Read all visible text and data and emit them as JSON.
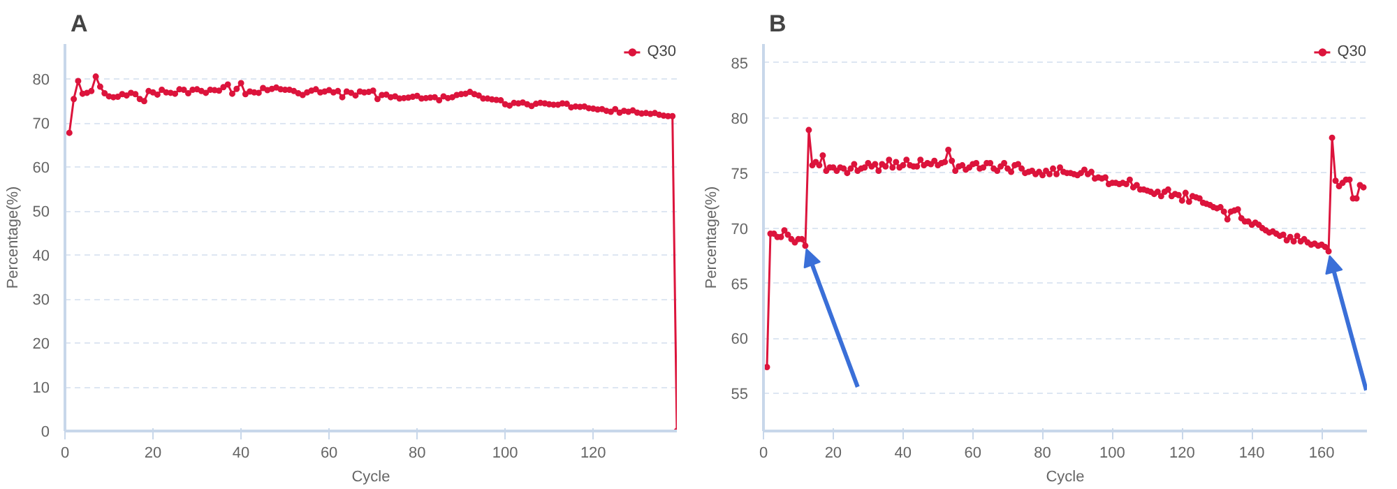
{
  "chart_data": [
    {
      "type": "line",
      "title": "A",
      "xlabel": "Cycle",
      "ylabel": "Percentage(%)",
      "xlim": [
        0,
        139
      ],
      "xticks": [
        0,
        20,
        40,
        60,
        80,
        100,
        120
      ],
      "ylim": [
        0,
        88
      ],
      "yticks": [
        0,
        10,
        20,
        30,
        40,
        50,
        60,
        70,
        80
      ],
      "grid": "y",
      "legend": "top right",
      "marker": "circle",
      "line_style": "solid",
      "series": [
        {
          "name": "Q30",
          "color": "#dc143c",
          "x": [
            1,
            2,
            3,
            4,
            5,
            6,
            7,
            8,
            9,
            10,
            11,
            12,
            13,
            14,
            15,
            16,
            17,
            18,
            19,
            20,
            21,
            22,
            23,
            24,
            25,
            26,
            27,
            28,
            29,
            30,
            31,
            32,
            33,
            34,
            35,
            36,
            37,
            38,
            39,
            40,
            41,
            42,
            43,
            44,
            45,
            46,
            47,
            48,
            49,
            50,
            51,
            52,
            53,
            54,
            55,
            56,
            57,
            58,
            59,
            60,
            61,
            62,
            63,
            64,
            65,
            66,
            67,
            68,
            69,
            70,
            71,
            72,
            73,
            74,
            75,
            76,
            77,
            78,
            79,
            80,
            81,
            82,
            83,
            84,
            85,
            86,
            87,
            88,
            89,
            90,
            91,
            92,
            93,
            94,
            95,
            96,
            97,
            98,
            99,
            100,
            101,
            102,
            103,
            104,
            105,
            106,
            107,
            108,
            109,
            110,
            111,
            112,
            113,
            114,
            115,
            116,
            117,
            118,
            119,
            120,
            121,
            122,
            123,
            124,
            125,
            126,
            127,
            128,
            129,
            130,
            131,
            132,
            133,
            134,
            135,
            136,
            137,
            138,
            139
          ],
          "values": [
            67.8,
            75.5,
            79.6,
            76.7,
            76.9,
            77.3,
            80.6,
            78.3,
            76.8,
            76.1,
            75.9,
            76.0,
            76.6,
            76.3,
            76.9,
            76.6,
            75.5,
            75.0,
            77.3,
            77.0,
            76.5,
            77.6,
            77.0,
            76.9,
            76.7,
            77.7,
            77.6,
            76.8,
            77.6,
            77.7,
            77.3,
            76.9,
            77.6,
            77.5,
            77.4,
            78.2,
            78.8,
            76.7,
            77.8,
            79.1,
            76.6,
            77.2,
            77.0,
            76.9,
            78.0,
            77.5,
            77.8,
            78.1,
            77.7,
            77.6,
            77.6,
            77.3,
            76.8,
            76.4,
            77.0,
            77.4,
            77.7,
            77.0,
            77.2,
            77.5,
            77.0,
            77.3,
            75.9,
            77.2,
            76.9,
            76.3,
            77.2,
            77.0,
            77.1,
            77.4,
            75.5,
            76.4,
            76.5,
            75.9,
            76.1,
            75.6,
            75.7,
            75.8,
            76.0,
            76.2,
            75.6,
            75.7,
            75.8,
            75.9,
            75.2,
            76.1,
            75.7,
            75.9,
            76.4,
            76.6,
            76.7,
            77.1,
            76.6,
            76.3,
            75.6,
            75.6,
            75.4,
            75.3,
            75.2,
            74.3,
            74.0,
            74.6,
            74.5,
            74.7,
            74.3,
            73.9,
            74.4,
            74.6,
            74.5,
            74.3,
            74.2,
            74.2,
            74.5,
            74.4,
            73.6,
            73.8,
            73.7,
            73.8,
            73.4,
            73.3,
            73.1,
            73.2,
            72.8,
            72.6,
            73.2,
            72.4,
            72.8,
            72.6,
            72.9,
            72.4,
            72.2,
            72.3,
            72.1,
            72.3,
            71.9,
            71.7,
            71.6,
            71.6,
            0
          ]
        }
      ]
    },
    {
      "type": "line",
      "title": "B",
      "xlabel": "Cycle",
      "ylabel": "Percentage(%)",
      "xlim": [
        0,
        173
      ],
      "xticks": [
        0,
        20,
        40,
        60,
        80,
        100,
        120,
        140,
        160
      ],
      "ylim": [
        51.6,
        86.7
      ],
      "yticks": [
        55,
        60,
        65,
        70,
        75,
        80,
        85
      ],
      "grid": "y",
      "legend": "top right",
      "marker": "circle",
      "line_style": "solid",
      "series": [
        {
          "name": "Q30",
          "color": "#dc143c",
          "x": [
            1,
            2,
            3,
            4,
            5,
            6,
            7,
            8,
            9,
            10,
            11,
            12,
            13,
            14,
            15,
            16,
            17,
            18,
            19,
            20,
            21,
            22,
            23,
            24,
            25,
            26,
            27,
            28,
            29,
            30,
            31,
            32,
            33,
            34,
            35,
            36,
            37,
            38,
            39,
            40,
            41,
            42,
            43,
            44,
            45,
            46,
            47,
            48,
            49,
            50,
            51,
            52,
            53,
            54,
            55,
            56,
            57,
            58,
            59,
            60,
            61,
            62,
            63,
            64,
            65,
            66,
            67,
            68,
            69,
            70,
            71,
            72,
            73,
            74,
            75,
            76,
            77,
            78,
            79,
            80,
            81,
            82,
            83,
            84,
            85,
            86,
            87,
            88,
            89,
            90,
            91,
            92,
            93,
            94,
            95,
            96,
            97,
            98,
            99,
            100,
            101,
            102,
            103,
            104,
            105,
            106,
            107,
            108,
            109,
            110,
            111,
            112,
            113,
            114,
            115,
            116,
            117,
            118,
            119,
            120,
            121,
            122,
            123,
            124,
            125,
            126,
            127,
            128,
            129,
            130,
            131,
            132,
            133,
            134,
            135,
            136,
            137,
            138,
            139,
            140,
            141,
            142,
            143,
            144,
            145,
            146,
            147,
            148,
            149,
            150,
            151,
            152,
            153,
            154,
            155,
            156,
            157,
            158,
            159,
            160,
            161,
            162,
            163,
            164,
            165,
            166,
            167,
            168,
            169,
            170,
            171,
            172
          ],
          "values": [
            57.4,
            69.5,
            69.5,
            69.2,
            69.2,
            69.8,
            69.4,
            69.0,
            68.7,
            69.0,
            69.0,
            68.4,
            78.9,
            75.7,
            76.0,
            75.7,
            76.6,
            75.2,
            75.5,
            75.5,
            75.2,
            75.5,
            75.4,
            75.0,
            75.4,
            75.8,
            75.2,
            75.4,
            75.5,
            75.9,
            75.6,
            75.8,
            75.2,
            75.8,
            75.6,
            76.2,
            75.5,
            76.0,
            75.5,
            75.7,
            76.2,
            75.7,
            75.6,
            75.6,
            76.2,
            75.7,
            75.9,
            75.8,
            76.1,
            75.7,
            75.9,
            76.0,
            77.1,
            76.1,
            75.2,
            75.6,
            75.7,
            75.3,
            75.5,
            75.8,
            75.9,
            75.4,
            75.5,
            75.9,
            75.9,
            75.4,
            75.2,
            75.6,
            75.9,
            75.4,
            75.1,
            75.7,
            75.8,
            75.4,
            75.0,
            75.1,
            75.2,
            74.9,
            75.1,
            74.8,
            75.2,
            74.9,
            75.4,
            74.9,
            75.5,
            75.1,
            75.0,
            75.0,
            74.9,
            74.8,
            75.0,
            75.3,
            74.9,
            75.1,
            74.5,
            74.6,
            74.5,
            74.6,
            74.0,
            74.1,
            74.1,
            74.0,
            74.1,
            74.0,
            74.4,
            73.7,
            73.9,
            73.5,
            73.5,
            73.4,
            73.3,
            73.1,
            73.3,
            72.9,
            73.3,
            73.5,
            72.9,
            73.1,
            73.0,
            72.5,
            73.2,
            72.4,
            72.9,
            72.8,
            72.7,
            72.3,
            72.2,
            72.1,
            71.9,
            71.8,
            71.9,
            71.5,
            70.8,
            71.5,
            71.6,
            71.7,
            70.9,
            70.6,
            70.6,
            70.3,
            70.5,
            70.3,
            70.0,
            69.8,
            69.6,
            69.7,
            69.5,
            69.3,
            69.4,
            68.9,
            69.2,
            68.8,
            69.3,
            68.8,
            69.0,
            68.7,
            68.5,
            68.6,
            68.4,
            68.5,
            68.3,
            67.9,
            78.2,
            74.3,
            73.8,
            74.1,
            74.4,
            74.4,
            72.7,
            72.7,
            73.9,
            73.7
          ]
        }
      ]
    }
  ]
}
